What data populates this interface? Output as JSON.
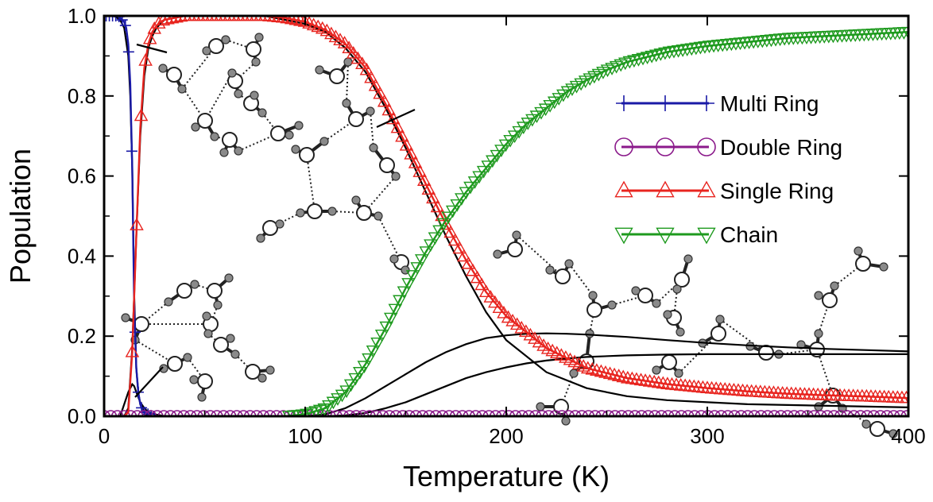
{
  "chart_data": {
    "type": "line",
    "title": "",
    "xlabel": "Temperature (K)",
    "ylabel": "Population",
    "xlim": [
      0,
      400
    ],
    "ylim": [
      0.0,
      1.0
    ],
    "xticks": [
      "0",
      "100",
      "200",
      "300",
      "400"
    ],
    "yticks": [
      "0.0",
      "0.2",
      "0.4",
      "0.6",
      "0.8",
      "1.0"
    ],
    "grid": false,
    "legend_position": "right",
    "series": [
      {
        "name": "Multi Ring",
        "color": "#1a1aa6",
        "marker": "plus",
        "x": [
          1,
          2,
          3,
          4,
          5,
          6,
          7,
          8,
          9,
          10,
          11,
          12,
          13,
          14,
          15,
          16,
          17,
          18,
          19,
          20,
          22,
          24,
          26,
          28,
          30,
          40,
          60,
          100,
          150,
          200,
          250,
          300,
          350,
          400
        ],
        "y": [
          1.0,
          1.0,
          1.0,
          1.0,
          1.0,
          1.0,
          1.0,
          0.995,
          0.99,
          0.985,
          0.97,
          0.93,
          0.83,
          0.62,
          0.27,
          0.12,
          0.06,
          0.03,
          0.015,
          0.01,
          0.005,
          0.0,
          0.0,
          0.0,
          0.0,
          0.0,
          0.0,
          0.0,
          0.0,
          0.0,
          0.0,
          0.0,
          0.0,
          0.0
        ]
      },
      {
        "name": "Double Ring",
        "color": "#8b1a8b",
        "marker": "circle",
        "x": [
          0,
          20,
          40,
          60,
          80,
          100,
          120,
          140,
          160,
          180,
          200,
          220,
          240,
          260,
          280,
          300,
          320,
          340,
          360,
          380,
          400
        ],
        "y": [
          0,
          0,
          0,
          0,
          0,
          0,
          0,
          0,
          0,
          0,
          0,
          0,
          0,
          0,
          0,
          0,
          0,
          0,
          0,
          0,
          0
        ]
      },
      {
        "name": "Single Ring",
        "color": "#e8241f",
        "marker": "triangle-up",
        "x": [
          10,
          12,
          14,
          16,
          18,
          20,
          22,
          24,
          26,
          28,
          30,
          35,
          40,
          50,
          60,
          70,
          80,
          90,
          100,
          110,
          120,
          130,
          140,
          150,
          160,
          170,
          180,
          190,
          200,
          220,
          240,
          260,
          280,
          300,
          320,
          340,
          360,
          380,
          400
        ],
        "y": [
          0.0,
          0.01,
          0.16,
          0.45,
          0.72,
          0.87,
          0.93,
          0.96,
          0.975,
          0.985,
          0.99,
          0.995,
          1.0,
          1.0,
          1.0,
          1.0,
          1.0,
          0.995,
          0.985,
          0.965,
          0.93,
          0.87,
          0.78,
          0.68,
          0.58,
          0.48,
          0.39,
          0.31,
          0.25,
          0.17,
          0.12,
          0.095,
          0.08,
          0.07,
          0.062,
          0.056,
          0.052,
          0.049,
          0.045
        ]
      },
      {
        "name": "Chain",
        "color": "#1e9a1e",
        "marker": "triangle-down",
        "x": [
          90,
          100,
          110,
          120,
          130,
          140,
          150,
          160,
          170,
          180,
          190,
          200,
          210,
          220,
          230,
          240,
          250,
          260,
          280,
          300,
          320,
          340,
          360,
          380,
          400
        ],
        "y": [
          0.0,
          0.005,
          0.02,
          0.06,
          0.13,
          0.22,
          0.32,
          0.41,
          0.49,
          0.56,
          0.62,
          0.68,
          0.73,
          0.77,
          0.81,
          0.84,
          0.865,
          0.885,
          0.91,
          0.925,
          0.935,
          0.945,
          0.95,
          0.955,
          0.96
        ]
      }
    ],
    "reference_curves": [
      {
        "x": [
          5,
          8,
          10,
          12,
          13,
          14,
          15,
          16,
          17,
          18,
          20,
          22,
          25
        ],
        "y": [
          1.0,
          0.99,
          0.97,
          0.9,
          0.8,
          0.62,
          0.3,
          0.12,
          0.06,
          0.03,
          0.01,
          0.0,
          0.0
        ]
      },
      {
        "x": [
          8,
          10,
          12,
          14,
          15,
          16,
          18,
          20,
          22,
          25,
          30,
          40
        ],
        "y": [
          0.0,
          0.03,
          0.06,
          0.08,
          0.075,
          0.06,
          0.035,
          0.02,
          0.01,
          0.005,
          0.0,
          0.0
        ]
      },
      {
        "x": [
          10,
          12,
          14,
          16,
          18,
          20,
          22,
          24,
          26,
          28,
          30,
          40,
          50,
          60,
          70,
          80,
          90,
          100,
          110,
          120,
          130,
          140,
          150,
          160,
          170,
          180,
          190,
          200,
          220,
          240,
          260,
          280,
          300,
          320,
          340,
          360,
          380,
          400
        ],
        "y": [
          0.0,
          0.02,
          0.17,
          0.45,
          0.7,
          0.85,
          0.92,
          0.95,
          0.97,
          0.98,
          0.99,
          1.0,
          1.0,
          1.0,
          1.0,
          1.0,
          0.99,
          0.98,
          0.96,
          0.92,
          0.86,
          0.77,
          0.67,
          0.56,
          0.45,
          0.35,
          0.26,
          0.19,
          0.11,
          0.07,
          0.05,
          0.04,
          0.035,
          0.03,
          0.028,
          0.026,
          0.024,
          0.022
        ]
      },
      {
        "x": [
          90,
          100,
          110,
          120,
          130,
          140,
          150,
          160,
          170,
          180,
          190,
          200,
          210,
          220,
          230,
          240,
          260,
          280,
          300,
          320,
          340,
          360,
          380,
          400
        ],
        "y": [
          0.0,
          0.0,
          0.005,
          0.02,
          0.045,
          0.075,
          0.105,
          0.135,
          0.16,
          0.18,
          0.195,
          0.202,
          0.206,
          0.207,
          0.206,
          0.204,
          0.198,
          0.19,
          0.183,
          0.177,
          0.172,
          0.168,
          0.165,
          0.162
        ]
      },
      {
        "x": [
          110,
          120,
          130,
          140,
          150,
          160,
          170,
          180,
          190,
          200,
          210,
          220,
          230,
          240,
          260,
          280,
          300,
          320,
          340,
          360,
          380,
          400
        ],
        "y": [
          0.0,
          0.002,
          0.008,
          0.02,
          0.035,
          0.055,
          0.075,
          0.095,
          0.11,
          0.122,
          0.132,
          0.139,
          0.144,
          0.148,
          0.152,
          0.154,
          0.155,
          0.155,
          0.155,
          0.155,
          0.155,
          0.155
        ]
      }
    ]
  }
}
